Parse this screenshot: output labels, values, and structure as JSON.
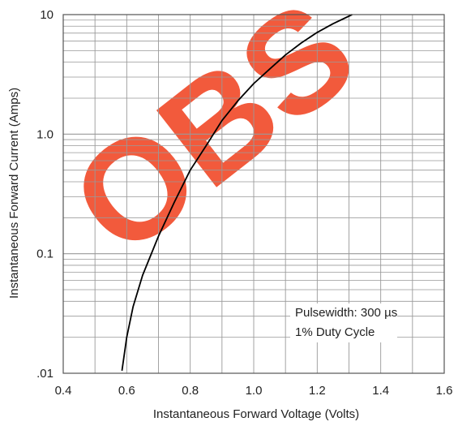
{
  "chart_data": {
    "type": "line",
    "x_scale": "linear",
    "y_scale": "log",
    "xlim": [
      0.4,
      1.6
    ],
    "ylim": [
      0.01,
      10
    ],
    "x_ticks": [
      0.4,
      0.6,
      0.8,
      1.0,
      1.2,
      1.4,
      1.6
    ],
    "x_tick_labels": [
      "0.4",
      "0.6",
      "0.8",
      "1.0",
      "1.2",
      "1.4",
      "1.6"
    ],
    "y_ticks": [
      0.01,
      0.1,
      1,
      10
    ],
    "y_tick_labels": [
      ".01",
      "0.1",
      "1.0",
      "10"
    ],
    "xlabel": "Instantaneous Forward Voltage (Volts)",
    "ylabel": "Instantaneous Forward Current (Amps)",
    "grid": true,
    "annotations": [
      "Pulsewidth: 300 µs",
      "1% Duty Cycle"
    ],
    "watermark": "OBS",
    "series": [
      {
        "x": [
          0.585,
          0.6,
          0.62,
          0.65,
          0.7,
          0.75,
          0.8,
          0.85,
          0.9,
          0.95,
          1.0,
          1.05,
          1.1,
          1.15,
          1.2,
          1.25,
          1.31
        ],
        "y": [
          0.0105,
          0.02,
          0.036,
          0.066,
          0.14,
          0.27,
          0.5,
          0.8,
          1.3,
          1.9,
          2.65,
          3.5,
          4.6,
          5.8,
          7.1,
          8.4,
          10
        ]
      }
    ]
  },
  "colors": {
    "curve": "#000000",
    "grid": "#999999",
    "watermark": "#f25a3c"
  }
}
